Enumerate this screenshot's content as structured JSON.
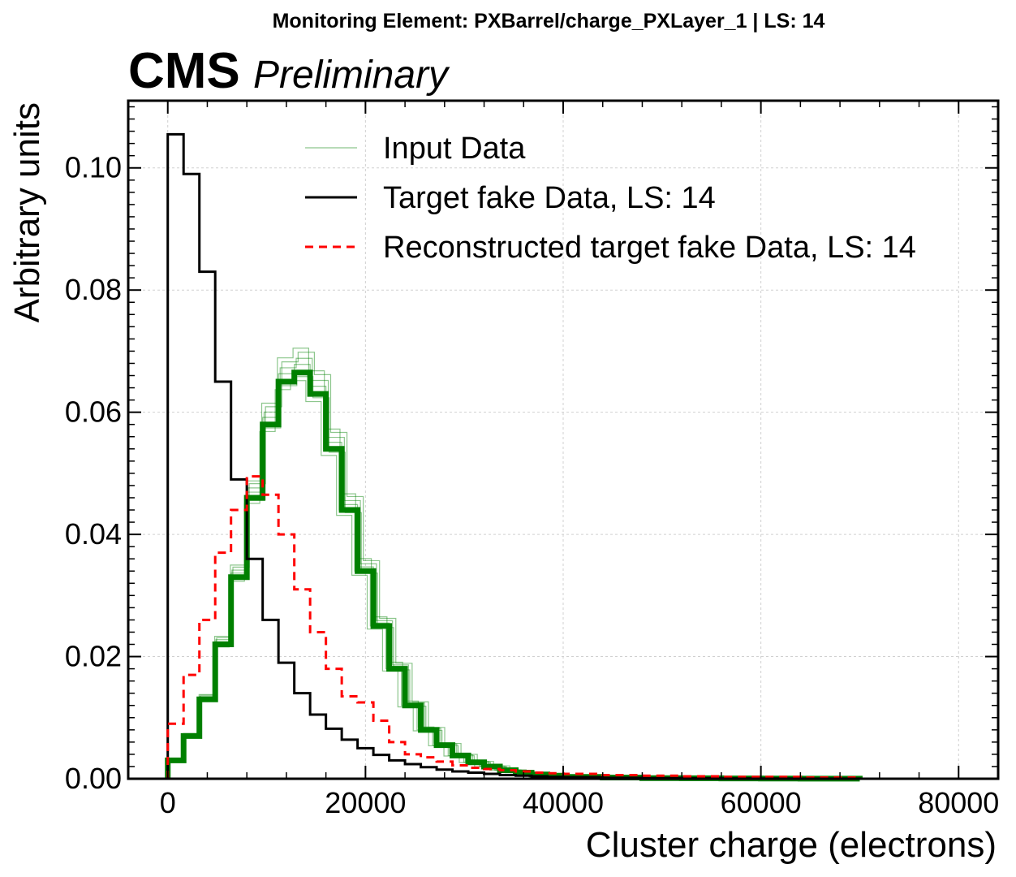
{
  "page_title": "Monitoring Element: PXBarrel/charge_PXLayer_1 | LS: 14",
  "experiment_label": "CMS",
  "status_label": "Preliminary",
  "chart_data": {
    "type": "line",
    "style": "step histogram",
    "xlabel": "Cluster charge (electrons)",
    "ylabel": "Arbitrary units",
    "xlim": [
      -4000,
      84000
    ],
    "ylim": [
      0,
      0.111
    ],
    "x_ticks": [
      "0",
      "20000",
      "40000",
      "60000",
      "80000"
    ],
    "y_ticks": [
      "0.00",
      "0.02",
      "0.04",
      "0.06",
      "0.08",
      "0.10"
    ],
    "grid": true,
    "legend_position": "top-right",
    "bin_edges": [
      0,
      1600,
      3200,
      4800,
      6400,
      8000,
      9600,
      11200,
      12800,
      14400,
      16000,
      17600,
      19200,
      20800,
      22400,
      24000,
      25600,
      27200,
      28800,
      30400,
      32000,
      33600,
      35200,
      36800,
      38400,
      40000,
      44000,
      48000,
      52000,
      56000,
      60000,
      64000,
      68000,
      70000
    ],
    "series": [
      {
        "name": "Input Data",
        "color": "#008000",
        "style": "solid-thin",
        "values": [
          0.003,
          0.007,
          0.013,
          0.022,
          0.033,
          0.046,
          0.058,
          0.065,
          0.0665,
          0.063,
          0.054,
          0.044,
          0.034,
          0.025,
          0.018,
          0.012,
          0.008,
          0.0055,
          0.0038,
          0.0027,
          0.002,
          0.0014,
          0.001,
          0.0007,
          0.0005,
          0.0003,
          0.0002,
          0.0001,
          8e-05,
          5e-05,
          3e-05,
          2e-05,
          1e-05
        ]
      },
      {
        "name": "Target fake Data, LS: 14",
        "color": "#000000",
        "style": "solid",
        "values": [
          0.1055,
          0.099,
          0.083,
          0.065,
          0.049,
          0.036,
          0.026,
          0.019,
          0.014,
          0.0105,
          0.0082,
          0.0064,
          0.005,
          0.0039,
          0.003,
          0.0024,
          0.0019,
          0.0015,
          0.0012,
          0.001,
          0.0008,
          0.0006,
          0.0005,
          0.0004,
          0.0003,
          0.00025,
          0.00015,
          0.0001,
          8e-05,
          5e-05,
          3e-05,
          2e-05,
          1e-05
        ]
      },
      {
        "name": "Reconstructed target fake Data, LS: 14",
        "color": "#ff0000",
        "style": "dashed",
        "values": [
          0.009,
          0.017,
          0.026,
          0.037,
          0.044,
          0.0495,
          0.0465,
          0.04,
          0.031,
          0.024,
          0.018,
          0.0135,
          0.0125,
          0.0095,
          0.006,
          0.004,
          0.0035,
          0.0028,
          0.0022,
          0.0018,
          0.0016,
          0.0014,
          0.0012,
          0.001,
          0.0009,
          0.0008,
          0.0006,
          0.0005,
          0.0004,
          0.0003,
          0.0003,
          0.0002,
          0.0002
        ]
      }
    ]
  }
}
